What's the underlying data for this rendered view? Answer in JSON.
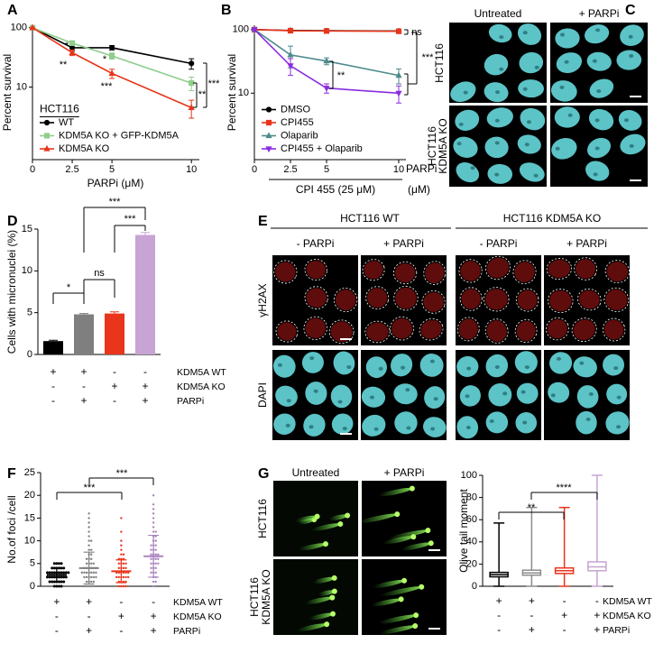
{
  "chart_data": [
    {
      "panel_label": "A",
      "type": "line",
      "yscale": "log",
      "y_label": "Percent survival",
      "x_label": "PARPi (μM)",
      "x": [
        0,
        2.5,
        5,
        10
      ],
      "xlim": [
        0,
        10.5
      ],
      "xticks": [
        0,
        2.5,
        5,
        10
      ],
      "ylim": [
        0.6,
        110
      ],
      "yticks": [
        10,
        100
      ],
      "legend_title": "HCT116",
      "legend": "lower left",
      "series": [
        {
          "name": "WT",
          "color": "#000000",
          "marker": "circle",
          "values": [
            100,
            46,
            46,
            25
          ],
          "errors": [
            0,
            6,
            4,
            5
          ]
        },
        {
          "name": "KDM5A KO + GFP-KDM5A",
          "color": "#8fce8c",
          "marker": "square",
          "values": [
            100,
            55,
            33.5,
            11.7
          ],
          "errors": [
            0,
            5,
            4,
            3
          ]
        },
        {
          "name": "KDM5A KO",
          "color": "#e8351b",
          "marker": "triangle",
          "values": [
            100,
            38,
            17,
            4.5
          ],
          "errors": [
            0,
            4,
            3,
            1.5
          ]
        }
      ],
      "annotations": [
        "*",
        "**",
        "*",
        "***",
        "**",
        "***"
      ]
    },
    {
      "panel_label": "B",
      "type": "line",
      "yscale": "log",
      "y_label": "Percent survival",
      "x_label": "PARPi",
      "x_unit": "(μM)",
      "x_sublabel": "CPI 455 (25 μM)",
      "x": [
        0,
        2.5,
        5,
        10
      ],
      "xlim": [
        0,
        10.5
      ],
      "xticks": [
        0,
        2.5,
        5,
        10
      ],
      "ylim": [
        0.9,
        117
      ],
      "yticks": [
        10,
        100
      ],
      "legend": "lower left",
      "series": [
        {
          "name": "DMSO",
          "color": "#000000",
          "marker": "circle",
          "values": [
            100,
            97,
            96,
            95
          ],
          "errors": [
            0,
            3,
            3,
            6
          ]
        },
        {
          "name": "CPI455",
          "color": "#e8351b",
          "marker": "square",
          "values": [
            100,
            96,
            95,
            94
          ],
          "errors": [
            0,
            2,
            2,
            5
          ]
        },
        {
          "name": "Olaparib",
          "color": "#4d8a8c",
          "marker": "triangle",
          "values": [
            100,
            40,
            32,
            19
          ],
          "errors": [
            0,
            15,
            4,
            5
          ]
        },
        {
          "name": "CPI455 + Olaparib",
          "color": "#8a2be2",
          "marker": "triangle-down",
          "values": [
            100,
            27,
            12,
            10
          ],
          "errors": [
            0,
            8,
            2,
            3
          ]
        }
      ],
      "annotations": [
        "ns",
        "**",
        "***"
      ]
    },
    {
      "panel_label": "D",
      "type": "bar",
      "y_label": "Cells with micronuclei (%)",
      "categories": [
        null,
        null,
        null,
        null
      ],
      "values": [
        1.6,
        4.8,
        4.9,
        14.3
      ],
      "errors": [
        0.1,
        0.1,
        0.2,
        0.3
      ],
      "colors": [
        "#000000",
        "#7f7f7f",
        "#e8351b",
        "#c7a4d3"
      ],
      "ylim": [
        0,
        15
      ],
      "yticks": [
        0,
        5,
        10,
        15
      ],
      "conditions": [
        {
          "label": "KDM5A WT",
          "signs": [
            "+",
            "+",
            "-",
            "-"
          ]
        },
        {
          "label": "KDM5A KO",
          "signs": [
            "-",
            "-",
            "+",
            "+"
          ]
        },
        {
          "label": "PARPi",
          "signs": [
            "-",
            "+",
            "-",
            "+"
          ]
        }
      ],
      "annotations": [
        "*",
        "ns",
        "***",
        "***"
      ]
    },
    {
      "panel_label": "F",
      "type": "dot",
      "y_label": "No.of foci /cell",
      "categories": [
        null,
        null,
        null,
        null
      ],
      "ylim": [
        0,
        25
      ],
      "yticks": [
        0,
        5,
        10,
        15,
        20,
        25
      ],
      "groups": [
        {
          "color": "#000000",
          "mean": 2.5,
          "sd": 1.6,
          "values": [
            0,
            0,
            0,
            1,
            1,
            1,
            1,
            1,
            2,
            2,
            2,
            2,
            2,
            2,
            3,
            3,
            3,
            3,
            3,
            3,
            3,
            4,
            4,
            4,
            4,
            4,
            5,
            5,
            5,
            2,
            1,
            3,
            2,
            4,
            0,
            3,
            2,
            1,
            5,
            3
          ]
        },
        {
          "color": "#808080",
          "mean": 4,
          "sd": 3.5,
          "values": [
            0,
            0,
            1,
            1,
            1,
            2,
            2,
            2,
            2,
            3,
            3,
            3,
            3,
            3,
            4,
            4,
            4,
            4,
            5,
            5,
            5,
            6,
            6,
            7,
            7,
            8,
            8,
            9,
            10,
            11,
            12,
            13,
            14,
            16,
            3,
            2,
            4,
            1,
            5,
            6,
            0,
            3,
            4,
            2,
            15,
            10
          ]
        },
        {
          "color": "#e8351b",
          "mean": 3.3,
          "sd": 2.5,
          "values": [
            0,
            0,
            0,
            1,
            1,
            1,
            2,
            2,
            2,
            2,
            3,
            3,
            3,
            3,
            4,
            4,
            4,
            5,
            5,
            5,
            6,
            6,
            7,
            7,
            8,
            9,
            10,
            12,
            15,
            2,
            3,
            1,
            4,
            3,
            2,
            5,
            0,
            6
          ]
        },
        {
          "color": "#a983bd",
          "mean": 6.6,
          "sd": 4.6,
          "values": [
            0,
            1,
            2,
            2,
            3,
            3,
            4,
            4,
            5,
            5,
            5,
            6,
            6,
            6,
            7,
            7,
            7,
            8,
            8,
            9,
            9,
            10,
            10,
            11,
            11,
            12,
            13,
            14,
            15,
            16,
            17,
            18,
            20,
            4,
            6,
            8,
            3,
            5,
            9,
            7,
            1,
            12
          ]
        }
      ],
      "conditions": [
        {
          "label": "KDM5A WT",
          "signs": [
            "+",
            "+",
            "-",
            "-"
          ]
        },
        {
          "label": "KDM5A KO",
          "signs": [
            "-",
            "-",
            "+",
            "+"
          ]
        },
        {
          "label": "PARPi",
          "signs": [
            "-",
            "+",
            "-",
            "+"
          ]
        }
      ],
      "annotations": [
        "***",
        "***"
      ]
    },
    {
      "type": "box",
      "y_label": "Olive tail moment",
      "categories": [
        null,
        null,
        null,
        null
      ],
      "ylim": [
        0,
        100
      ],
      "yticks": [
        0,
        20,
        40,
        60,
        80,
        100
      ],
      "groups": [
        {
          "color": "#000000",
          "min": 0,
          "q1": 8.5,
          "median": 10.5,
          "q3": 12.5,
          "max": 57
        },
        {
          "color": "#8c8c8c",
          "min": 0,
          "q1": 10,
          "median": 12,
          "q3": 14.5,
          "max": 71
        },
        {
          "color": "#e8351b",
          "min": 0,
          "q1": 11.5,
          "median": 14,
          "q3": 16.5,
          "max": 71
        },
        {
          "color": "#c7a4d3",
          "min": 0,
          "q1": 14,
          "median": 17.5,
          "q3": 22,
          "max": 100
        }
      ],
      "conditions": [
        {
          "label": "KDM5A WT",
          "signs": [
            "+",
            "+",
            "-",
            "-"
          ]
        },
        {
          "label": "KDM5A KO",
          "signs": [
            "-",
            "-",
            "+",
            "+"
          ]
        },
        {
          "label": "PARPi",
          "signs": [
            "-",
            "+",
            "-",
            "+"
          ]
        }
      ],
      "annotations": [
        "**",
        "****"
      ]
    }
  ],
  "image_panels": [
    {
      "panel_label": "C",
      "columns": [
        "Untreated",
        "+ PARPi"
      ],
      "rows": [
        [
          "HCT116"
        ],
        [
          "HCT116",
          "KDM5A KO"
        ]
      ]
    },
    {
      "panel_label": "E",
      "groups": [
        "HCT116 WT",
        "HCT116 KDM5A KO"
      ],
      "columns": [
        "- PARPi",
        "+ PARPi",
        "- PARPi",
        "+ PARPi"
      ],
      "rows": [
        [
          "γH2AX"
        ],
        [
          "DAPI"
        ]
      ]
    },
    {
      "panel_label": "G",
      "columns": [
        "Untreated",
        "+ PARPi"
      ],
      "rows": [
        [
          "HCT116"
        ],
        [
          "HCT116",
          "KDM5A KO"
        ]
      ]
    }
  ]
}
